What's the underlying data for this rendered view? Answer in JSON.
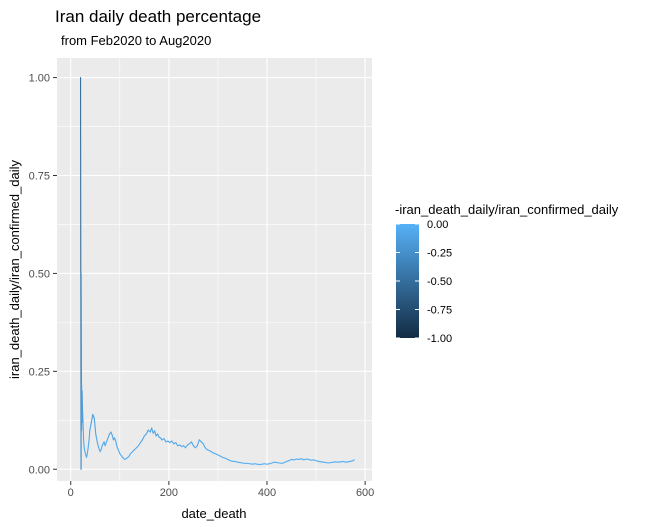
{
  "chart_data": {
    "type": "line",
    "title": "Iran daily death percentage",
    "subtitle": "from Feb2020 to Aug2020",
    "xlabel": "date_death",
    "ylabel": "iran_death_daily/iran_confirmed_daily",
    "xlim": [
      -28,
      614
    ],
    "ylim": [
      -0.03,
      1.05
    ],
    "x_ticks": [
      0,
      200,
      400,
      600
    ],
    "x_tick_labels": [
      "0",
      "200",
      "400",
      "600"
    ],
    "y_ticks": [
      0.0,
      0.25,
      0.5,
      0.75,
      1.0
    ],
    "y_tick_labels": [
      "0.00",
      "0.25",
      "0.50",
      "0.75",
      "1.00"
    ],
    "grid": true,
    "legend": {
      "title": "-iran_death_daily/iran_confirmed_daily",
      "position": "right",
      "type": "colorbar",
      "range": [
        -1.0,
        0.0
      ],
      "breaks": [
        0.0,
        -0.25,
        -0.5,
        -0.75,
        -1.0
      ],
      "break_labels": [
        "0.00",
        "-0.25",
        "-0.50",
        "-0.75",
        "-1.00"
      ],
      "color_low": "#132b43",
      "color_high": "#56b1f7"
    },
    "series": [
      {
        "x": [
          20,
          21,
          21,
          22,
          22,
          23,
          23,
          24,
          25,
          26,
          27,
          28,
          29,
          30,
          31,
          32,
          33,
          35,
          37,
          39,
          42,
          45,
          48,
          51,
          54,
          57,
          60,
          62,
          64,
          66,
          68,
          70,
          73,
          76,
          79,
          82,
          85,
          87,
          89,
          91,
          93,
          95,
          97,
          100,
          103,
          106,
          110,
          114,
          118,
          122,
          126,
          130,
          134,
          138,
          142,
          146,
          150,
          154,
          158,
          162,
          165,
          168,
          171,
          174,
          177,
          180,
          183,
          186,
          190,
          194,
          198,
          202,
          206,
          210,
          214,
          218,
          222,
          226,
          230,
          234,
          238,
          242,
          246,
          250,
          254,
          258,
          262,
          266,
          270,
          274,
          278,
          282,
          286,
          290,
          294,
          298,
          302,
          306,
          310,
          315,
          320,
          325,
          330,
          335,
          340,
          345,
          350,
          355,
          360,
          365,
          370,
          375,
          380,
          385,
          390,
          395,
          400,
          405,
          410,
          415,
          420,
          425,
          430,
          435,
          440,
          445,
          450,
          455,
          460,
          465,
          470,
          475,
          480,
          485,
          490,
          495,
          500,
          505,
          510,
          515,
          520,
          525,
          530,
          535,
          540,
          545,
          550,
          555,
          560,
          565,
          570,
          575,
          578
        ],
        "y": [
          1.0,
          0.0,
          0.5,
          0.1,
          0.22,
          0.12,
          0.2,
          0.15,
          0.12,
          0.08,
          0.06,
          0.05,
          0.045,
          0.04,
          0.035,
          0.03,
          0.035,
          0.05,
          0.07,
          0.1,
          0.12,
          0.14,
          0.13,
          0.09,
          0.07,
          0.055,
          0.045,
          0.05,
          0.06,
          0.065,
          0.07,
          0.06,
          0.07,
          0.08,
          0.09,
          0.095,
          0.085,
          0.075,
          0.08,
          0.075,
          0.065,
          0.055,
          0.05,
          0.04,
          0.035,
          0.03,
          0.025,
          0.028,
          0.032,
          0.04,
          0.045,
          0.05,
          0.055,
          0.06,
          0.068,
          0.075,
          0.085,
          0.09,
          0.1,
          0.095,
          0.105,
          0.092,
          0.098,
          0.085,
          0.09,
          0.082,
          0.08,
          0.075,
          0.078,
          0.07,
          0.072,
          0.068,
          0.072,
          0.065,
          0.068,
          0.06,
          0.062,
          0.058,
          0.06,
          0.055,
          0.062,
          0.065,
          0.07,
          0.06,
          0.055,
          0.06,
          0.075,
          0.07,
          0.065,
          0.055,
          0.05,
          0.048,
          0.045,
          0.042,
          0.04,
          0.038,
          0.035,
          0.033,
          0.03,
          0.028,
          0.025,
          0.022,
          0.02,
          0.02,
          0.018,
          0.017,
          0.016,
          0.015,
          0.015,
          0.014,
          0.013,
          0.014,
          0.013,
          0.012,
          0.013,
          0.014,
          0.013,
          0.014,
          0.016,
          0.018,
          0.017,
          0.016,
          0.015,
          0.017,
          0.02,
          0.022,
          0.025,
          0.024,
          0.026,
          0.025,
          0.027,
          0.024,
          0.026,
          0.025,
          0.023,
          0.024,
          0.022,
          0.02,
          0.019,
          0.018,
          0.017,
          0.016,
          0.017,
          0.018,
          0.019,
          0.018,
          0.019,
          0.02,
          0.018,
          0.019,
          0.02,
          0.022,
          0.024
        ]
      }
    ]
  }
}
